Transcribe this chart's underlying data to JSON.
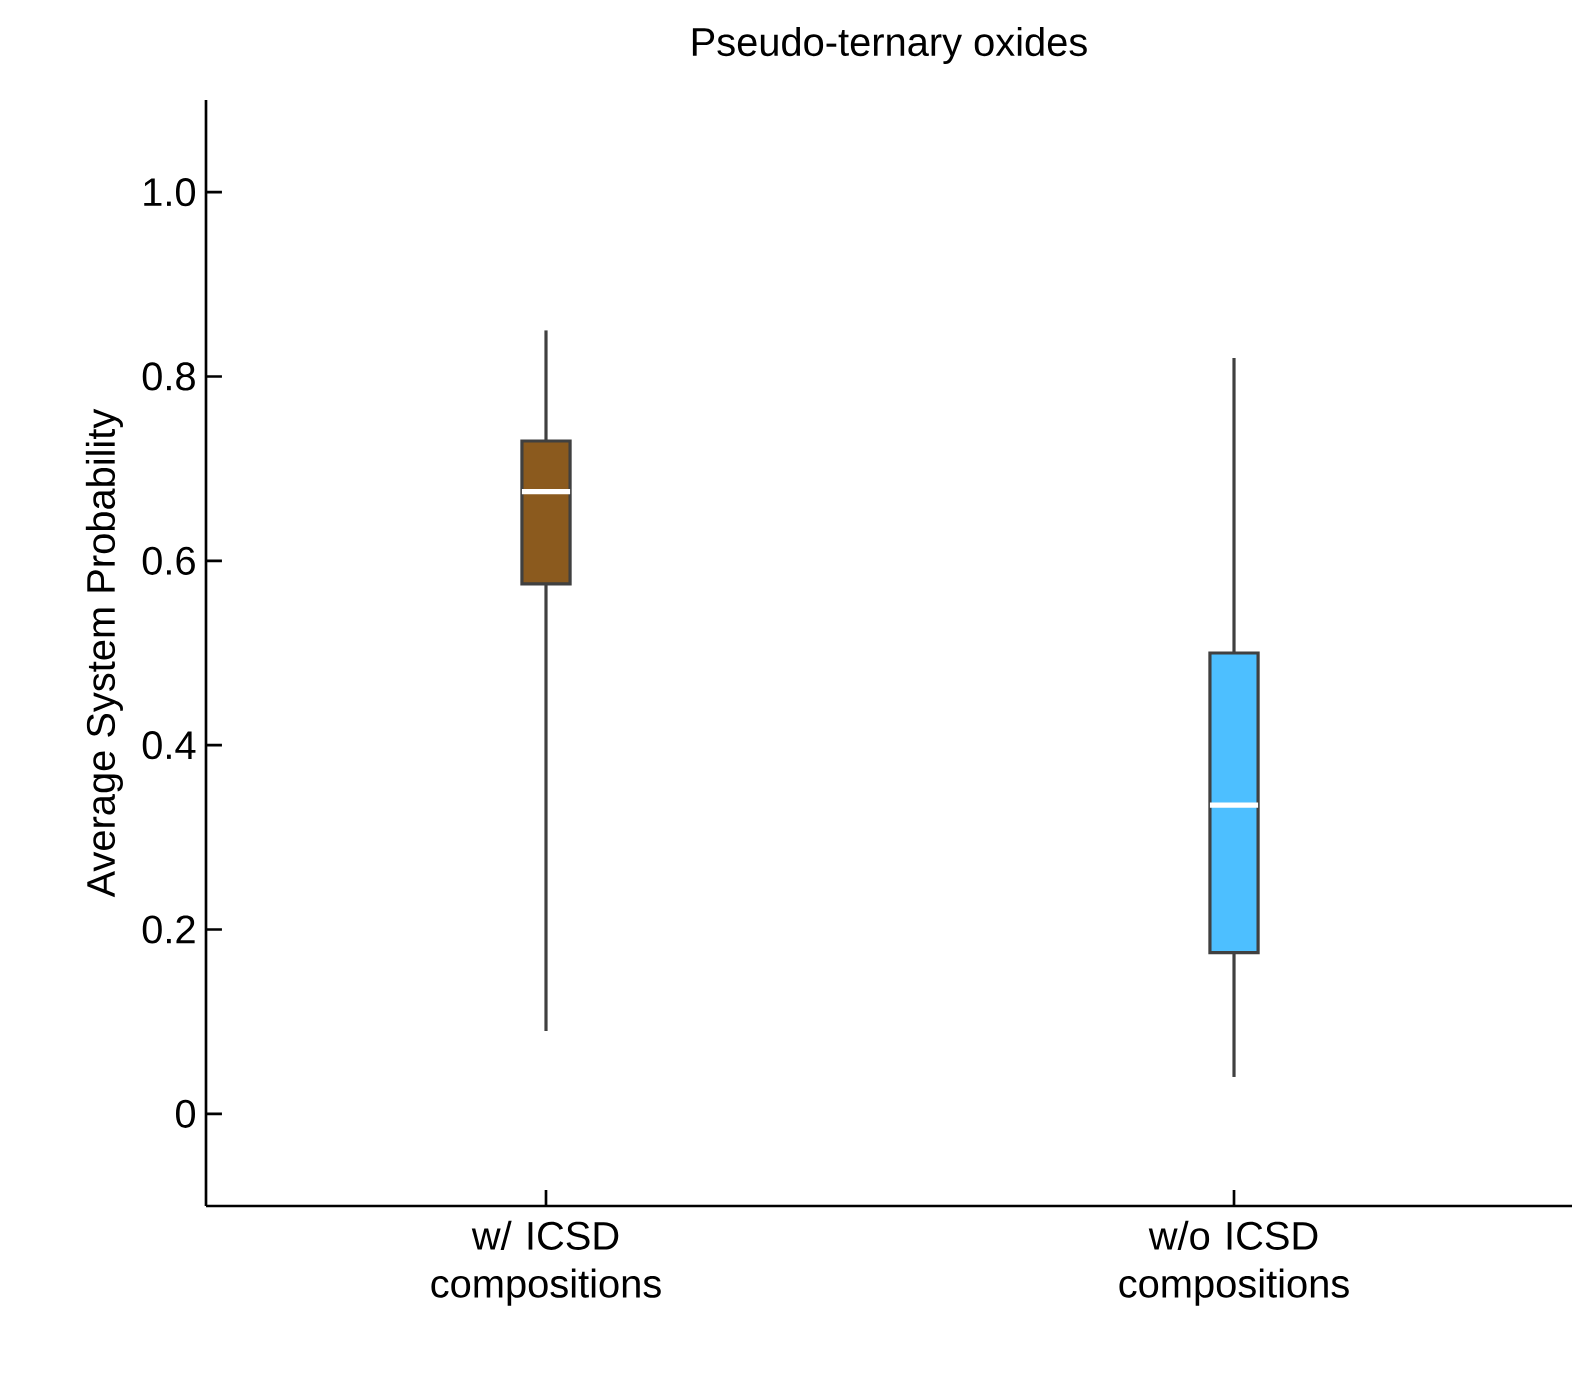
{
  "chart_data": {
    "type": "box",
    "title": "Pseudo-ternary oxides",
    "ylabel": "Average System Probability",
    "categories": [
      "w/ ICSD compositions",
      "w/o ICSD compositions"
    ],
    "colors": [
      "#8b5a1e",
      "#4dbfff"
    ],
    "boxes": [
      {
        "low": 0.09,
        "q1": 0.575,
        "median": 0.675,
        "q3": 0.73,
        "high": 0.85
      },
      {
        "low": 0.04,
        "q1": 0.175,
        "median": 0.335,
        "q3": 0.5,
        "high": 0.82
      }
    ],
    "ylim": [
      -0.1,
      1.1
    ],
    "yticks": [
      0,
      0.2,
      0.4,
      0.6,
      0.8,
      {
        "value": 1,
        "label": "1.0"
      }
    ]
  }
}
